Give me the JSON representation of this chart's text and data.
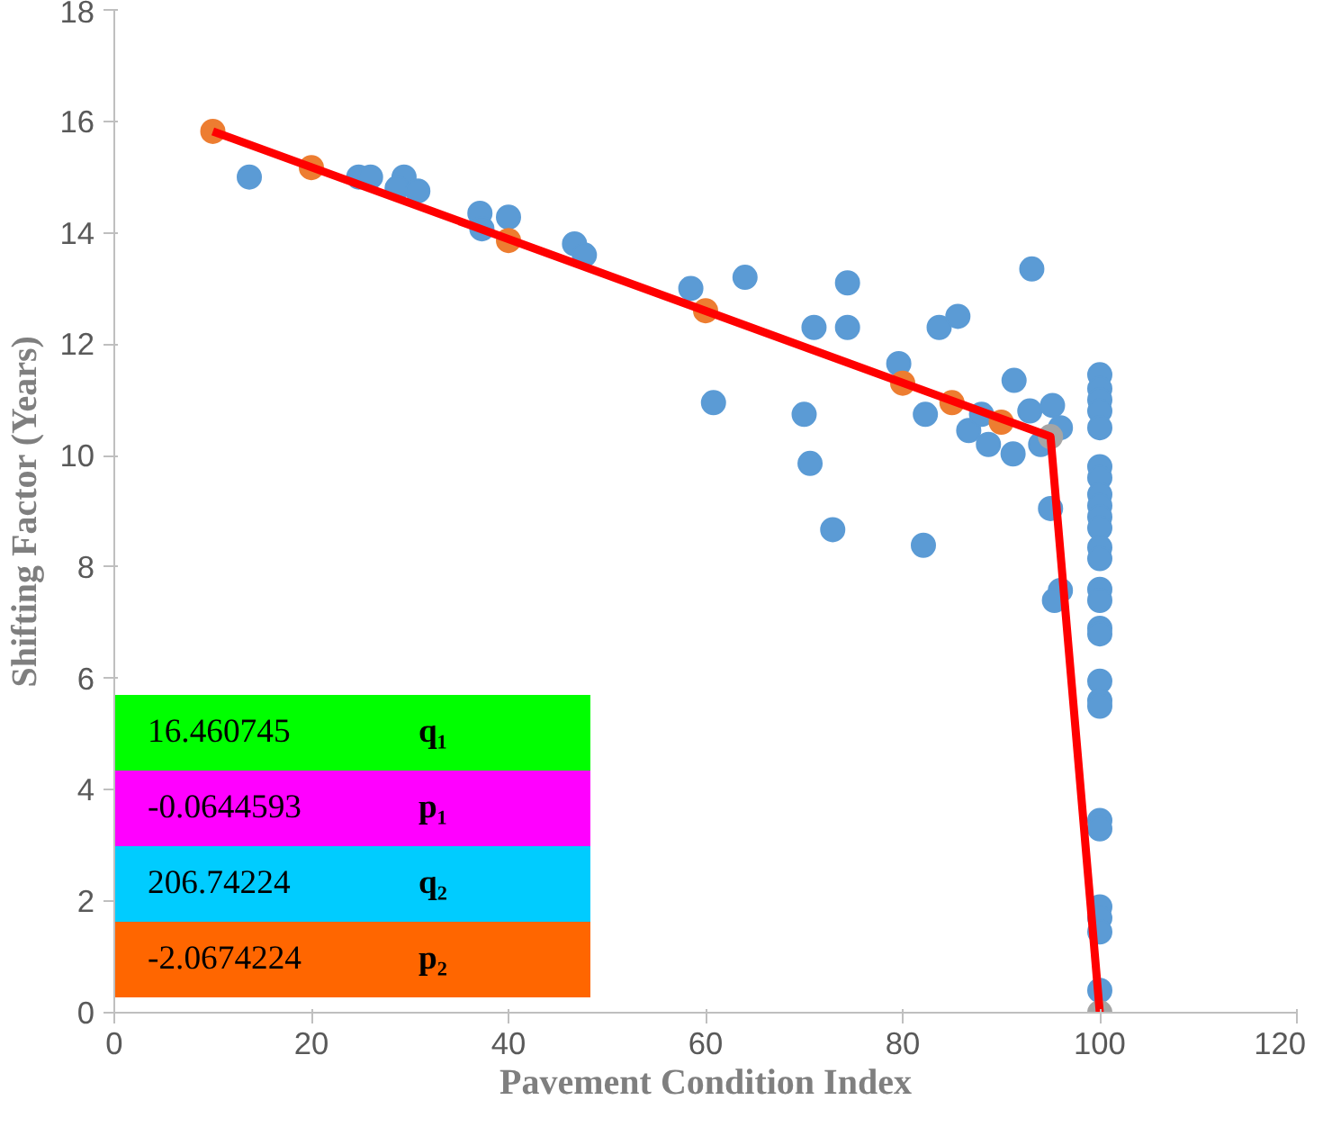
{
  "chart_data": {
    "type": "scatter",
    "xlabel": "Pavement Condition Index",
    "ylabel": "Shifting Factor (Years)",
    "xlim": [
      0,
      120
    ],
    "xticks": [
      0,
      20,
      40,
      60,
      80,
      100,
      120
    ],
    "ylim": [
      0,
      18
    ],
    "yticks": [
      0,
      2,
      4,
      6,
      8,
      10,
      12,
      14,
      16,
      18
    ],
    "grid": false,
    "marker": "circle",
    "series": [
      {
        "color": "#5b9bd5",
        "x": [
          13.7,
          24.8,
          26,
          29.4,
          28.7,
          30.8,
          37.1,
          37.3,
          40,
          46.7,
          47.7,
          58.5,
          64,
          74.4,
          93.1,
          71,
          74.4,
          83.7,
          85.6,
          79.6,
          91.3,
          60.8,
          70,
          82.3,
          70.6,
          72.9,
          82.1,
          86.7,
          88.7,
          91.2,
          92.9,
          95.2,
          88,
          95,
          96,
          95.4,
          94,
          96,
          100,
          100,
          100,
          100,
          100,
          100,
          100,
          100,
          100,
          100,
          100,
          100,
          100,
          100,
          100,
          100,
          100,
          100,
          100,
          100,
          100,
          100,
          100,
          100,
          100,
          100
        ],
        "values": [
          15.0,
          15.0,
          15.0,
          15.0,
          14.8,
          14.75,
          14.35,
          14.07,
          14.28,
          13.8,
          13.6,
          13.0,
          13.2,
          13.1,
          13.35,
          12.3,
          12.3,
          12.3,
          12.5,
          11.65,
          11.35,
          10.95,
          10.74,
          10.74,
          9.86,
          8.67,
          8.39,
          10.45,
          10.2,
          10.03,
          10.8,
          10.9,
          10.74,
          9.05,
          7.58,
          7.4,
          10.2,
          10.5,
          11.45,
          11.2,
          11.0,
          10.8,
          10.5,
          9.8,
          9.6,
          9.3,
          9.1,
          8.9,
          8.7,
          8.35,
          8.15,
          7.6,
          7.4,
          6.9,
          6.8,
          5.95,
          5.6,
          5.5,
          3.45,
          3.3,
          1.9,
          1.7,
          1.45,
          0.4
        ]
      },
      {
        "color": "#ed7d31",
        "x": [
          10,
          20,
          40,
          60,
          80,
          85,
          90
        ],
        "values": [
          15.82,
          15.17,
          13.86,
          12.6,
          11.3,
          10.95,
          10.6
        ]
      },
      {
        "color": "#a5a5a5",
        "x": [
          95,
          100
        ],
        "values": [
          10.34,
          0.0
        ]
      },
      {
        "type": "line",
        "marker": "none",
        "line_style": "solid",
        "color": "#ff0000",
        "x": [
          10,
          95,
          100
        ],
        "values": [
          15.82,
          10.34,
          0.0
        ]
      }
    ],
    "annotations": [
      "16.460745",
      "q₁",
      "-0.0644593",
      "p₁",
      "206.74224",
      "q₂",
      "-2.0674224",
      "p₂"
    ]
  }
}
